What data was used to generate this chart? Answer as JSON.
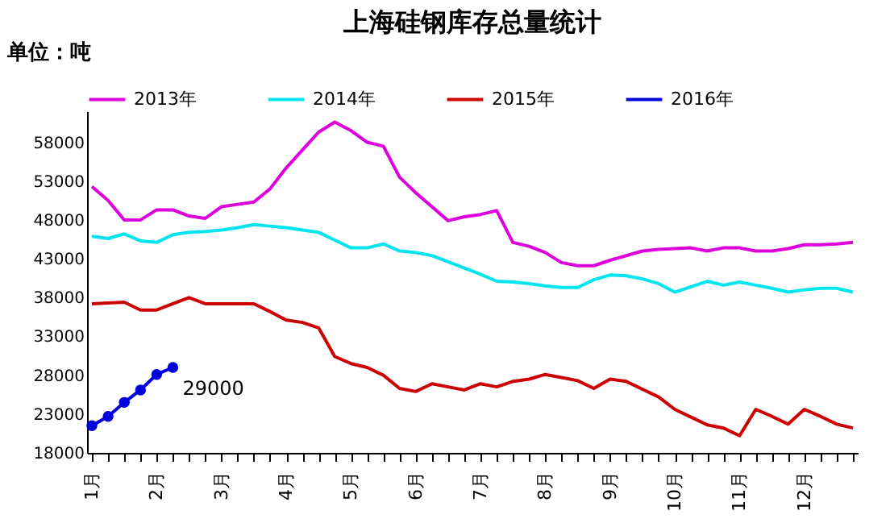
{
  "chart_data": {
    "type": "line",
    "title": "上海硅钢库存总量统计",
    "ylabel": "单位：吨",
    "categories": [
      "1月",
      null,
      null,
      null,
      "2月",
      null,
      null,
      null,
      "3月",
      null,
      null,
      null,
      "4月",
      null,
      null,
      null,
      "5月",
      null,
      null,
      null,
      "6月",
      null,
      null,
      null,
      "7月",
      null,
      null,
      null,
      "8月",
      null,
      null,
      null,
      "9月",
      null,
      null,
      null,
      "10月",
      null,
      null,
      null,
      "11月",
      null,
      null,
      null,
      "12月",
      null,
      null,
      null
    ],
    "series": [
      {
        "name": "2013年",
        "color": "#dd00dd",
        "marker": "none",
        "values": [
          52300,
          50500,
          48000,
          48000,
          49300,
          49300,
          48500,
          48200,
          49700,
          50000,
          50300,
          52000,
          54700,
          57000,
          59300,
          60600,
          59500,
          58000,
          57500,
          53500,
          51500,
          49700,
          47900,
          48400,
          48700,
          49200,
          45100,
          44600,
          43800,
          42500,
          42100,
          42100,
          42800,
          43400,
          44000,
          44200,
          44300,
          44400,
          44000,
          44400,
          44400,
          44000,
          44000,
          44300,
          44800,
          44800,
          44900,
          45100
        ]
      },
      {
        "name": "2014年",
        "color": "#00e5ee",
        "marker": "none",
        "values": [
          45900,
          45600,
          46200,
          45300,
          45100,
          46100,
          46400,
          46500,
          46700,
          47000,
          47400,
          47200,
          47000,
          46700,
          46400,
          45400,
          44400,
          44400,
          44900,
          44000,
          43800,
          43400,
          42600,
          41800,
          41000,
          40100,
          40000,
          39800,
          39500,
          39300,
          39300,
          40300,
          40900,
          40800,
          40400,
          39800,
          38700,
          39400,
          40100,
          39600,
          40000,
          39600,
          39200,
          38700,
          39000,
          39200,
          39200,
          38700
        ]
      },
      {
        "name": "2015年",
        "color": "#cc0000",
        "marker": "none",
        "values": [
          37200,
          37300,
          37400,
          36400,
          36400,
          37200,
          38000,
          37200,
          37200,
          37200,
          37200,
          36200,
          35100,
          34800,
          34100,
          30400,
          29500,
          29000,
          28000,
          26300,
          25900,
          26900,
          26500,
          26100,
          26900,
          26500,
          27200,
          27500,
          28100,
          27700,
          27300,
          26300,
          27500,
          27200,
          26200,
          25200,
          23600,
          22600,
          21600,
          21200,
          20200,
          23600,
          22700,
          21700,
          23600,
          22700,
          21700,
          21200
        ]
      },
      {
        "name": "2016年",
        "color": "#0000dd",
        "marker": "circle",
        "values": [
          21500,
          22700,
          24500,
          26100,
          28100,
          29000,
          null,
          null,
          null,
          null,
          null,
          null,
          null,
          null,
          null,
          null,
          null,
          null,
          null,
          null,
          null,
          null,
          null,
          null,
          null,
          null,
          null,
          null,
          null,
          null,
          null,
          null,
          null,
          null,
          null,
          null,
          null,
          null,
          null,
          null,
          null,
          null,
          null,
          null,
          null,
          null,
          null,
          null
        ]
      }
    ],
    "ylim": [
      18000,
      62000
    ],
    "yticks": [
      18000,
      23000,
      28000,
      33000,
      38000,
      43000,
      48000,
      53000,
      58000
    ],
    "annotations": [
      "29000"
    ],
    "legend": "top",
    "grid": false
  }
}
